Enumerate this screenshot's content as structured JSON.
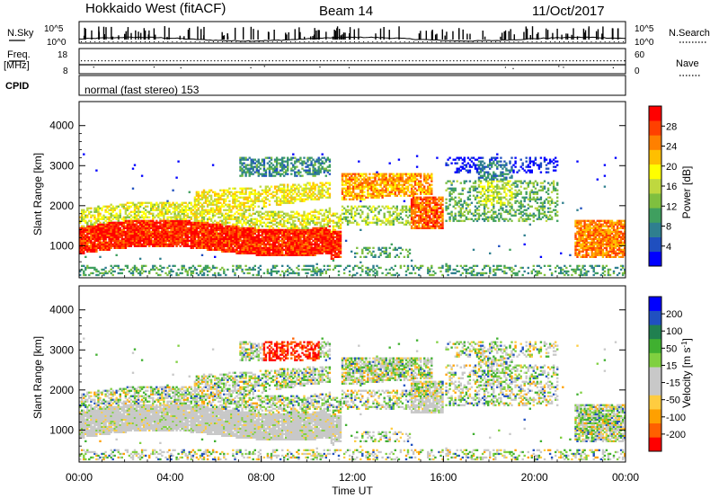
{
  "header": {
    "station": "Hokkaido West (fitACF)",
    "beam": "Beam 14",
    "date": "11/Oct/2017"
  },
  "top_panels": {
    "nsky_label": "N.Sky",
    "nsky_ticks": [
      "10^5",
      "10^0"
    ],
    "nsearch_label": "N.Search",
    "nsearch_ticks": [
      "10^5",
      "10^0"
    ],
    "freq_label_1": "Freq.",
    "freq_label_2": "[MHz]",
    "freq_ticks": [
      "18",
      "8"
    ],
    "nave_label": "Nave",
    "nave_ticks": [
      "60",
      "0"
    ],
    "cpid_label": "CPID",
    "cpid_text": "normal (fast stereo) 153"
  },
  "chart_data": [
    {
      "type": "heatmap",
      "name": "power-panel",
      "ylabel": "Slant Range [km]",
      "xlabel": "",
      "y_ticks": [
        "1000",
        "2000",
        "3000",
        "4000"
      ],
      "ylim": [
        200,
        4600
      ],
      "xlim": [
        0,
        24
      ],
      "colorbar": {
        "label": "Power [dB]",
        "ticks": [
          "4",
          "8",
          "12",
          "16",
          "20",
          "24",
          "28"
        ],
        "colors": [
          "#0000ff",
          "#1f4fbf",
          "#2f7f8f",
          "#3f9f5f",
          "#7fbf3f",
          "#bfd83f",
          "#ffff00",
          "#ffbf00",
          "#ff8000",
          "#ff4000",
          "#ff0000"
        ]
      }
    },
    {
      "type": "heatmap",
      "name": "velocity-panel",
      "ylabel": "Slant Range [km]",
      "xlabel": "Time UT",
      "y_ticks": [
        "1000",
        "2000",
        "3000",
        "4000"
      ],
      "x_ticks": [
        "00:00",
        "04:00",
        "08:00",
        "12:00",
        "16:00",
        "20:00",
        "00:00"
      ],
      "ylim": [
        200,
        4600
      ],
      "xlim": [
        0,
        24
      ],
      "colorbar": {
        "label_main": "Velocity [m s",
        "label_sup": "-1",
        "label_end": "]",
        "ticks": [
          "200",
          "100",
          "50",
          "15",
          "-15",
          "-50",
          "-100",
          "-200"
        ],
        "colors": [
          "#ff0000",
          "#ff6000",
          "#ffa000",
          "#ffcc40",
          "#c8c8c8",
          "#c8c8c8",
          "#80d040",
          "#40b030",
          "#208050",
          "#2050c0",
          "#0000ff"
        ]
      }
    }
  ]
}
